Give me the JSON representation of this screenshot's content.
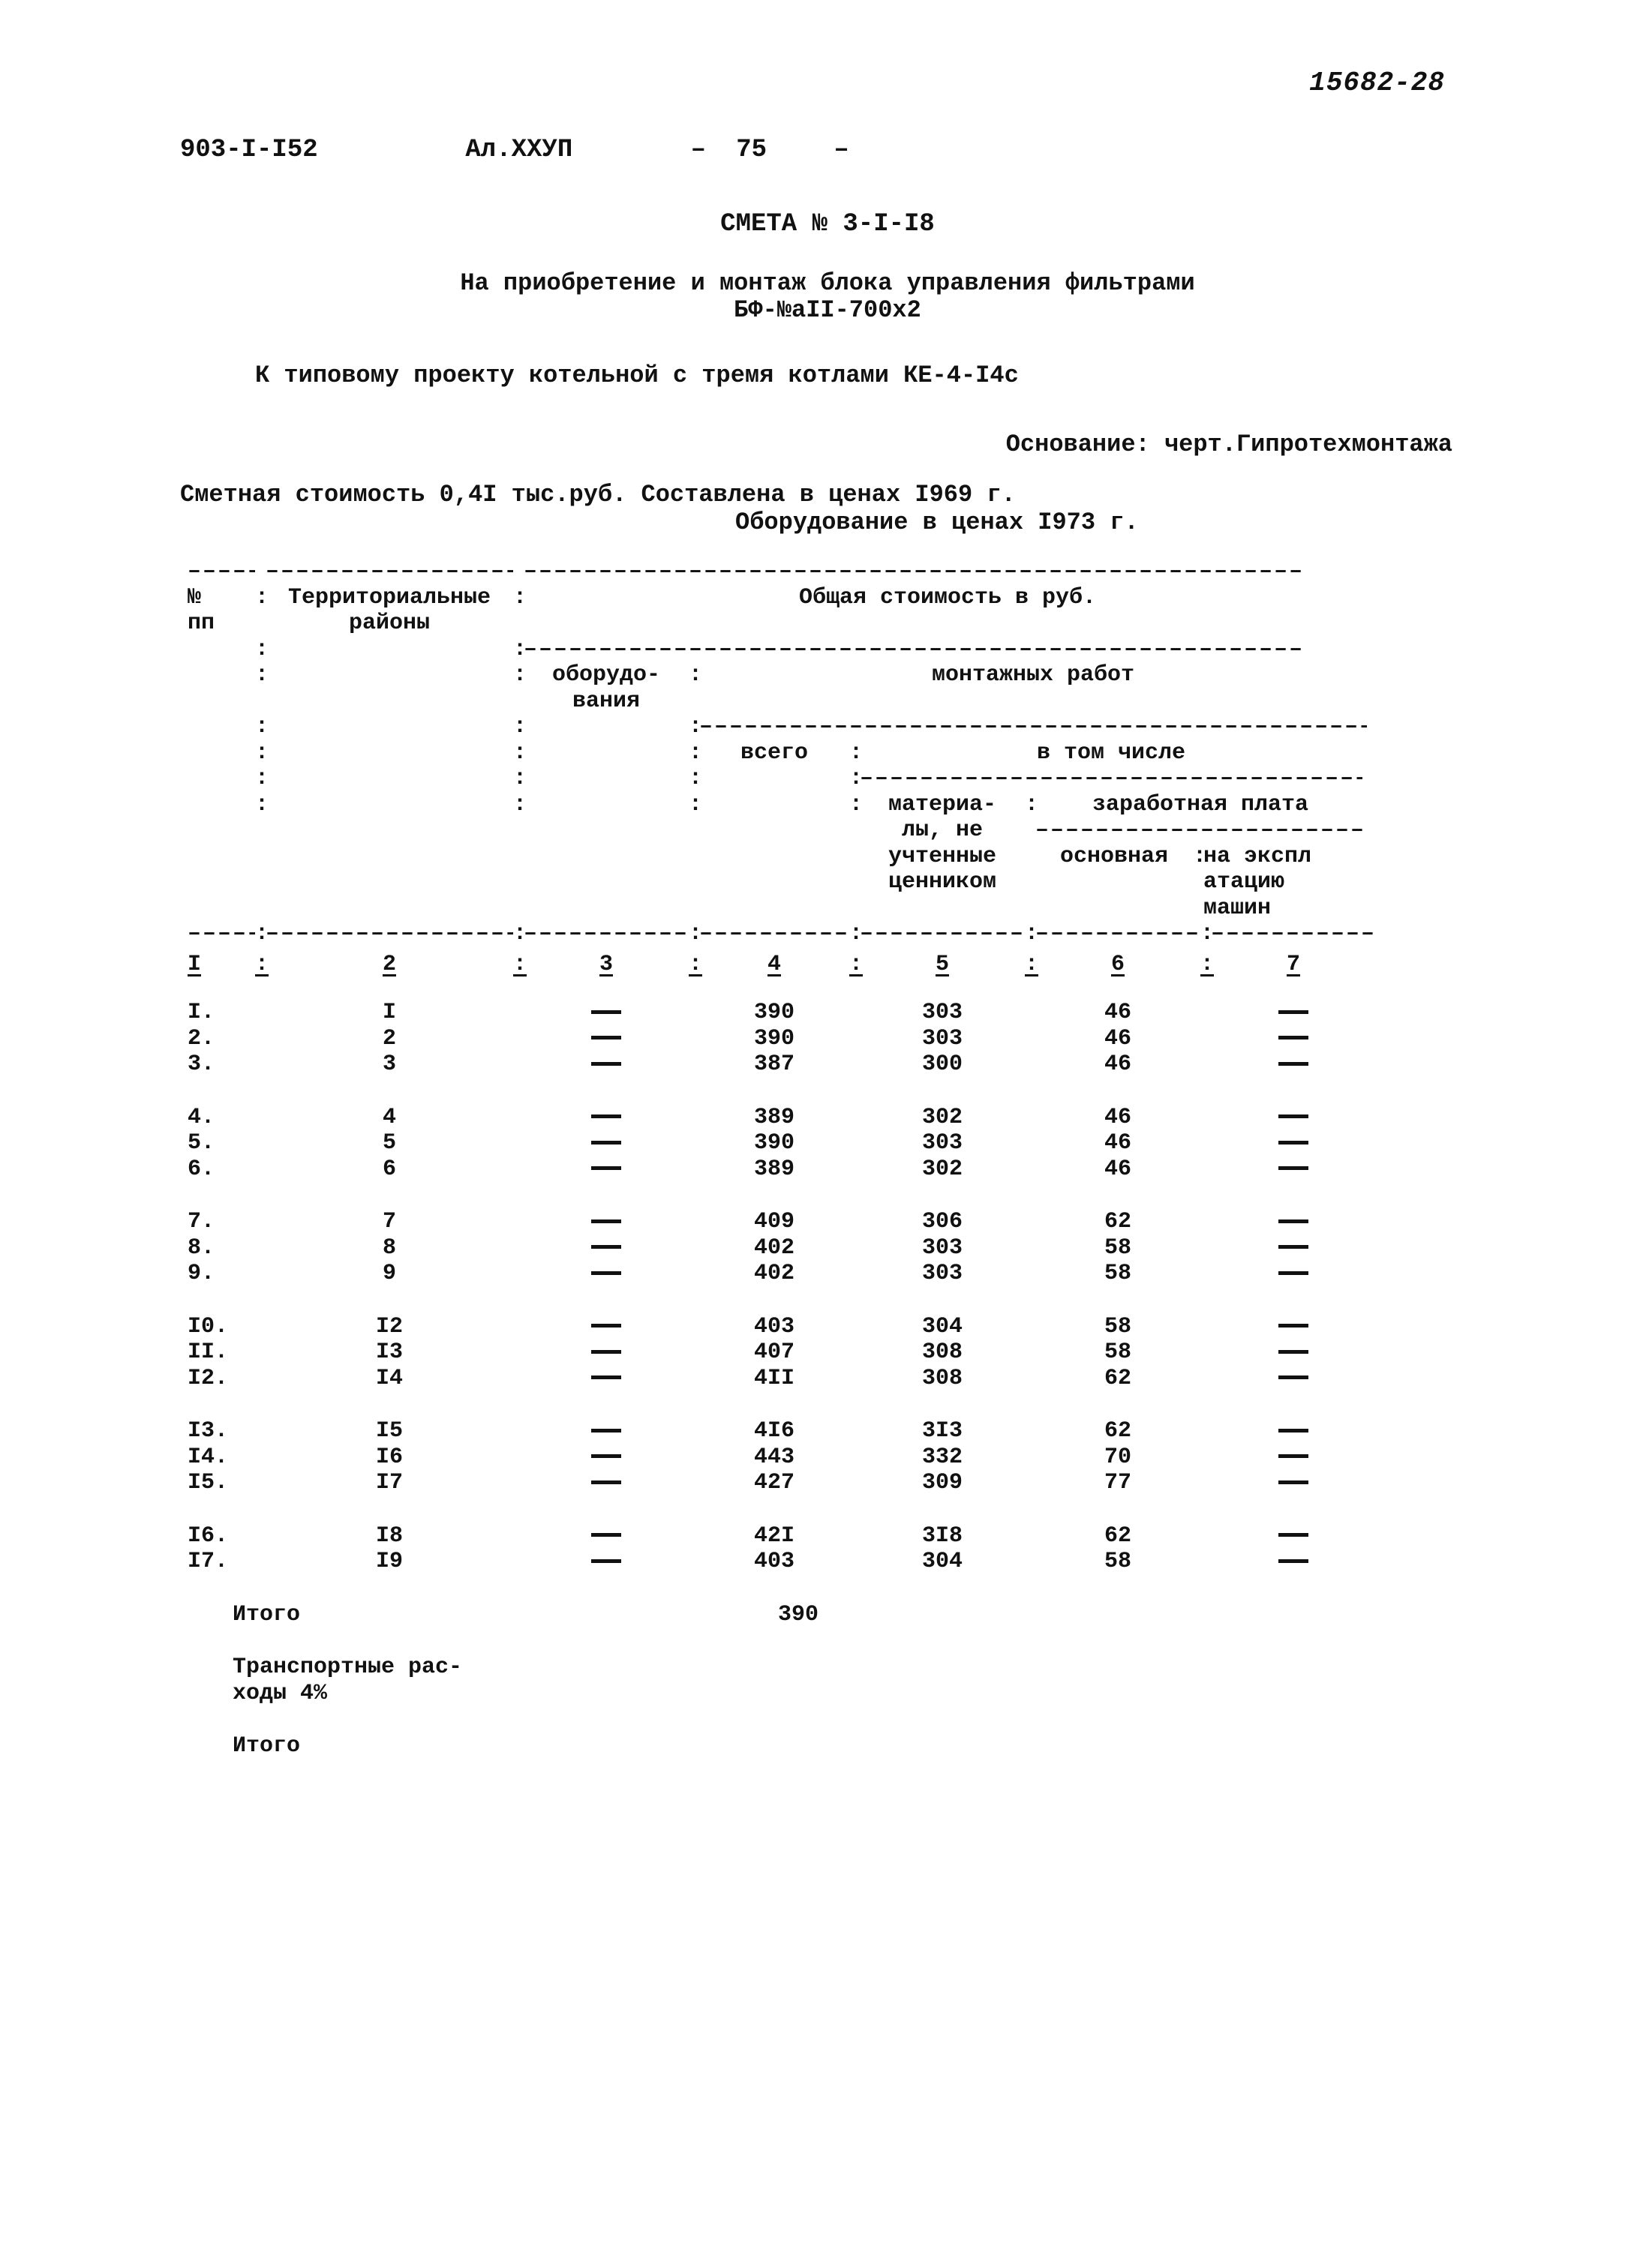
{
  "top_code": "15682-28",
  "doc_id": "903-I-I52",
  "album": "Ал.XXУП",
  "page_dash1": "–",
  "page_no": "75",
  "page_dash2": "–",
  "smeta_title": "СМЕТА № 3-I-I8",
  "smeta_sub1": "На приобретение и монтаж блока управления фильтрами",
  "smeta_sub2": "БФ-№aII-700х2",
  "typical_line": "К типовому проекту котельной с тремя котлами КЕ-4-I4с",
  "osn_line": "Основание: черт.Гипротехмонтажа",
  "cost_line1": "Сметная стоимость 0,4I тыс.руб. Составлена в ценах I969 г.",
  "cost_line2": "Оборудование в ценах I973 г.",
  "colon": ":",
  "dash_segment": "––––––––––––––––––––––––––––––––––––––––––––––––––––",
  "head": {
    "c1": "№\nпп",
    "c2": "Территориальные\nрайоны",
    "total_label": "Общая стоимость в руб.",
    "c3": "оборудо-\nвания",
    "montazh": "монтажных работ",
    "c4": "всего",
    "vtom": "в том числе",
    "c5": "материа-\nлы, не\nучтенные\nценником",
    "zar": "заработная плата",
    "c6": "основная",
    "c7": "на экспл\nатацию\nмашин"
  },
  "colnums": {
    "c1": "I",
    "c2": "2",
    "c3": "3",
    "c4": "4",
    "c5": "5",
    "c6": "6",
    "c7": "7"
  },
  "groups": [
    [
      {
        "n": "I.",
        "r": "I",
        "c3": "–",
        "c4": "390",
        "c5": "303",
        "c6": "46",
        "c7": "–"
      },
      {
        "n": "2.",
        "r": "2",
        "c3": "–",
        "c4": "390",
        "c5": "303",
        "c6": "46",
        "c7": "–"
      },
      {
        "n": "3.",
        "r": "3",
        "c3": "–",
        "c4": "387",
        "c5": "300",
        "c6": "46",
        "c7": "–"
      }
    ],
    [
      {
        "n": "4.",
        "r": "4",
        "c3": "–",
        "c4": "389",
        "c5": "302",
        "c6": "46",
        "c7": "–"
      },
      {
        "n": "5.",
        "r": "5",
        "c3": "–",
        "c4": "390",
        "c5": "303",
        "c6": "46",
        "c7": "–"
      },
      {
        "n": "6.",
        "r": "6",
        "c3": "–",
        "c4": "389",
        "c5": "302",
        "c6": "46",
        "c7": "–"
      }
    ],
    [
      {
        "n": "7.",
        "r": "7",
        "c3": "–",
        "c4": "409",
        "c5": "306",
        "c6": "62",
        "c7": "–"
      },
      {
        "n": "8.",
        "r": "8",
        "c3": "–",
        "c4": "402",
        "c5": "303",
        "c6": "58",
        "c7": "–"
      },
      {
        "n": "9.",
        "r": "9",
        "c3": "–",
        "c4": "402",
        "c5": "303",
        "c6": "58",
        "c7": "–"
      }
    ],
    [
      {
        "n": "I0.",
        "r": "I2",
        "c3": "–",
        "c4": "403",
        "c5": "304",
        "c6": "58",
        "c7": "–"
      },
      {
        "n": "II.",
        "r": "I3",
        "c3": "–",
        "c4": "407",
        "c5": "308",
        "c6": "58",
        "c7": "–"
      },
      {
        "n": "I2.",
        "r": "I4",
        "c3": "–",
        "c4": "4II",
        "c5": "308",
        "c6": "62",
        "c7": "–"
      }
    ],
    [
      {
        "n": "I3.",
        "r": "I5",
        "c3": "–",
        "c4": "4I6",
        "c5": "3I3",
        "c6": "62",
        "c7": "–"
      },
      {
        "n": "I4.",
        "r": "I6",
        "c3": "–",
        "c4": "443",
        "c5": "332",
        "c6": "70",
        "c7": "–"
      },
      {
        "n": "I5.",
        "r": "I7",
        "c3": "–",
        "c4": "427",
        "c5": "309",
        "c6": "77",
        "c7": "–"
      }
    ],
    [
      {
        "n": "I6.",
        "r": "I8",
        "c3": "–",
        "c4": "42I",
        "c5": "3I8",
        "c6": "62",
        "c7": "–"
      },
      {
        "n": "I7.",
        "r": "I9",
        "c3": "–",
        "c4": "403",
        "c5": "304",
        "c6": "58",
        "c7": "–"
      }
    ]
  ],
  "footer": {
    "itogo": "Итого",
    "itogo_val": "390",
    "transport1": "Транспортные рас-",
    "transport2": "ходы 4%",
    "itogo2": "Итого"
  }
}
